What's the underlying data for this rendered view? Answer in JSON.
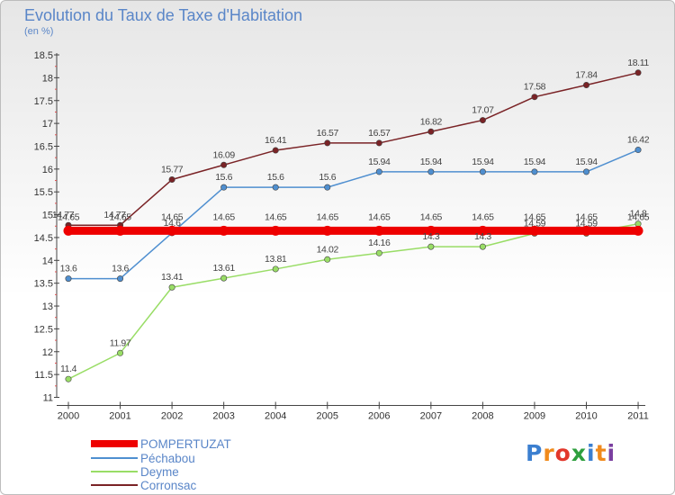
{
  "chart_data": {
    "type": "line",
    "title": "Evolution du Taux de Taxe d'Habitation",
    "subtitle": "(en %)",
    "categories": [
      "2000",
      "2001",
      "2002",
      "2003",
      "2004",
      "2005",
      "2006",
      "2007",
      "2008",
      "2009",
      "2010",
      "2011"
    ],
    "yticks": [
      "11",
      "11.5",
      "12",
      "12.5",
      "13",
      "13.5",
      "14",
      "14.5",
      "15",
      "15.5",
      "16",
      "16.5",
      "17",
      "17.5",
      "18",
      "18.5"
    ],
    "ylim": [
      11,
      18.5
    ],
    "series": [
      {
        "name": "POMPERTUZAT",
        "color": "#ee0000",
        "values": [
          14.65,
          14.65,
          14.65,
          14.65,
          14.65,
          14.65,
          14.65,
          14.65,
          14.65,
          14.65,
          14.65,
          14.65
        ],
        "labels": [
          "14.65",
          "14.65",
          "14.65",
          "14.65",
          "14.65",
          "14.65",
          "14.65",
          "14.65",
          "14.65",
          "14.65",
          "14.65",
          "14.65"
        ]
      },
      {
        "name": "Péchabou",
        "color": "#4f8fd0",
        "values": [
          13.6,
          13.6,
          14.6,
          15.6,
          15.6,
          15.6,
          15.94,
          15.94,
          15.94,
          15.94,
          15.94,
          16.42
        ],
        "labels": [
          "13.6",
          "13.6",
          "14.6",
          "15.6",
          "15.6",
          "15.6",
          "15.94",
          "15.94",
          "15.94",
          "15.94",
          "15.94",
          "16.42"
        ]
      },
      {
        "name": "Deyme",
        "color": "#99dd66",
        "values": [
          11.4,
          11.97,
          13.41,
          13.61,
          13.81,
          14.02,
          14.16,
          14.3,
          14.3,
          14.59,
          14.59,
          14.8
        ],
        "labels": [
          "11.4",
          "11.97",
          "13.41",
          "13.61",
          "13.81",
          "14.02",
          "14.16",
          "14.3",
          "14.3",
          "14.59",
          "14.59",
          "14.8"
        ]
      },
      {
        "name": "Corronsac",
        "color": "#7a2326",
        "values": [
          14.77,
          14.77,
          15.77,
          16.09,
          16.41,
          16.57,
          16.57,
          16.82,
          17.07,
          17.58,
          17.84,
          18.11
        ],
        "labels": [
          "14.77",
          "14.77",
          "15.77",
          "16.09",
          "16.41",
          "16.57",
          "16.57",
          "16.82",
          "17.07",
          "17.58",
          "17.84",
          "18.11"
        ]
      }
    ]
  },
  "logo": {
    "text": "Proxiti",
    "letters": [
      "P",
      "r",
      "o",
      "x",
      "i",
      "t",
      "i"
    ],
    "colors": [
      "#3b7fd0",
      "#f08a1c",
      "#e2372b",
      "#2e9f3e",
      "#3b7fd0",
      "#f08a1c",
      "#7a3fa0"
    ]
  }
}
